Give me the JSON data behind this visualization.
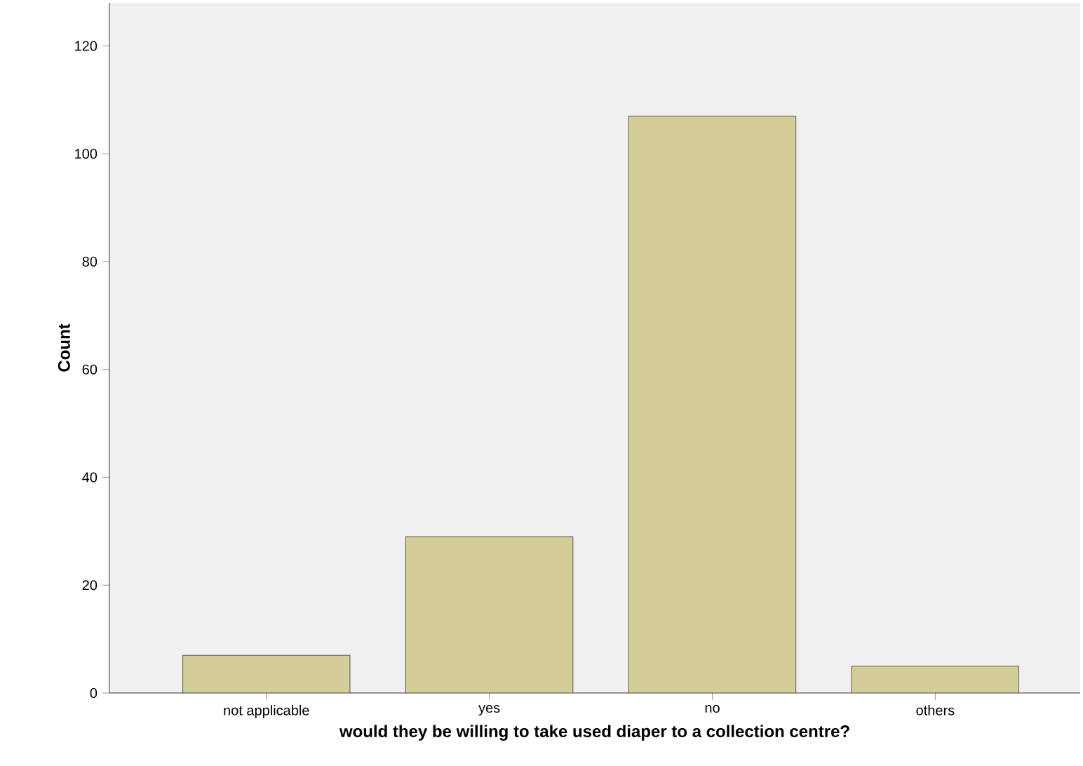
{
  "chart_data": {
    "type": "bar",
    "xlabel": "would they be willing to take used diaper to a collection centre?",
    "ylabel": "Count",
    "categories": [
      "not applicable",
      "yes",
      "no",
      "others"
    ],
    "values": [
      7,
      29,
      107,
      5
    ],
    "color": "#d3cd97",
    "ylim": [
      0,
      128
    ],
    "yticks": [
      0,
      20,
      40,
      60,
      80,
      100,
      120
    ],
    "grid": false
  }
}
